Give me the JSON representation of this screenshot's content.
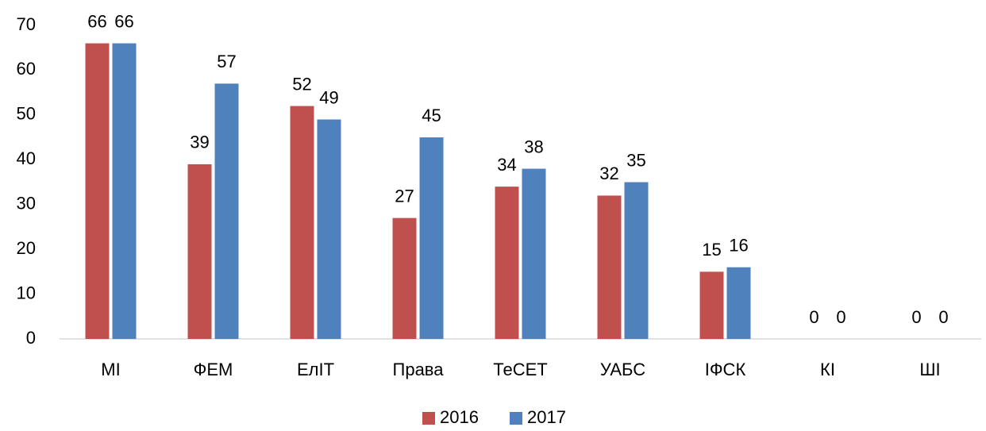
{
  "chart_data": {
    "type": "bar",
    "categories": [
      "МІ",
      "ФЕМ",
      "ЕлІТ",
      "Права",
      "ТеСЕТ",
      "УАБС",
      "ІФСК",
      "КІ",
      "ШІ"
    ],
    "series": [
      {
        "name": "2016",
        "color": "#c0504d",
        "values": [
          66,
          39,
          52,
          27,
          34,
          32,
          15,
          0,
          0
        ]
      },
      {
        "name": "2017",
        "color": "#4f81bd",
        "values": [
          66,
          57,
          49,
          45,
          38,
          35,
          16,
          0,
          0
        ]
      }
    ],
    "ylim": [
      0,
      70
    ],
    "yticks": [
      0,
      10,
      20,
      30,
      40,
      50,
      60,
      70
    ],
    "grid": false,
    "legend": "bottom"
  }
}
